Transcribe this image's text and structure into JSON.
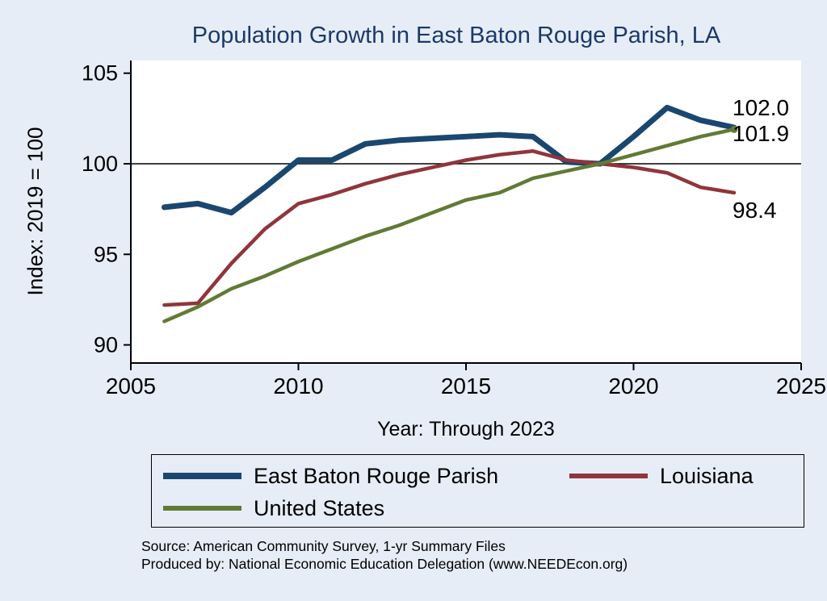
{
  "chart_data": {
    "type": "line",
    "title": "Population Growth in East Baton Rouge Parish, LA",
    "xlabel": "Year: Through 2023",
    "ylabel": "Index: 2019 = 100",
    "x": [
      2006,
      2007,
      2008,
      2009,
      2010,
      2011,
      2012,
      2013,
      2014,
      2015,
      2016,
      2017,
      2018,
      2019,
      2020,
      2021,
      2022,
      2023
    ],
    "series": [
      {
        "name": "East Baton Rouge Parish",
        "color": "#1a476f",
        "width": 7,
        "values": [
          97.6,
          97.8,
          97.3,
          98.7,
          100.2,
          100.2,
          101.1,
          101.3,
          101.4,
          101.5,
          101.6,
          101.5,
          100.1,
          100.0,
          101.5,
          103.1,
          102.4,
          102.0
        ]
      },
      {
        "name": "Louisiana",
        "color": "#90353b",
        "width": 4.5,
        "values": [
          92.2,
          92.3,
          94.5,
          96.4,
          97.8,
          98.3,
          98.9,
          99.4,
          99.8,
          100.2,
          100.5,
          100.7,
          100.2,
          100.0,
          99.8,
          99.5,
          98.7,
          98.4
        ]
      },
      {
        "name": "United States",
        "color": "#617a35",
        "width": 4.5,
        "values": [
          91.3,
          92.1,
          93.1,
          93.8,
          94.6,
          95.3,
          96.0,
          96.6,
          97.3,
          98.0,
          98.4,
          99.2,
          99.6,
          100.0,
          100.5,
          101.0,
          101.5,
          101.9
        ]
      }
    ],
    "end_labels": [
      {
        "series": "East Baton Rouge Parish",
        "text": "102.0"
      },
      {
        "series": "United States",
        "text": "101.9"
      },
      {
        "series": "Louisiana",
        "text": "98.4"
      }
    ],
    "reference_line": 100,
    "xlim": [
      2005,
      2025
    ],
    "ylim": [
      89.0,
      105.7
    ],
    "xticks": [
      "2005",
      "2010",
      "2015",
      "2020",
      "2025"
    ],
    "yticks": [
      "90",
      "95",
      "100",
      "105"
    ],
    "grid": false,
    "legend_position": "bottom"
  },
  "footer": {
    "source_line": "Source: American Community Survey, 1-yr Summary Files",
    "produced_line": "Produced by: National Economic Education Delegation (www.NEEDEcon.org)"
  },
  "colors": {
    "background": "#e7edf6",
    "plot_background": "#ffffff",
    "title": "#1a3a6b",
    "axis": "#000000"
  }
}
